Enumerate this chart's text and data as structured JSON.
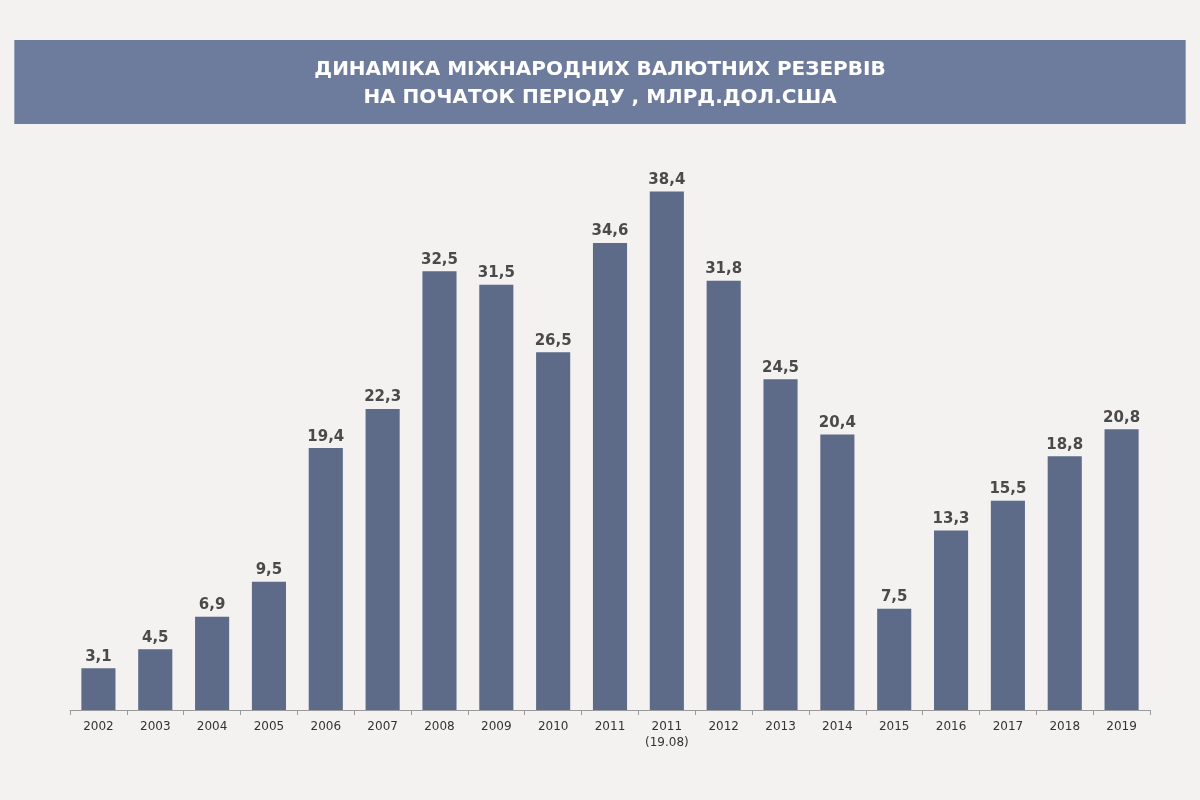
{
  "chart_data": {
    "type": "bar",
    "title": "ДИНАМІКА МІЖНАРОДНИХ ВАЛЮТНИХ РЕЗЕРВІВ\nНА ПОЧАТОК ПЕРІОДУ , МЛРД.ДОЛ.США",
    "categories": [
      "2002",
      "2003",
      "2004",
      "2005",
      "2006",
      "2007",
      "2008",
      "2009",
      "2010",
      "2011",
      "2011\n(19.08)",
      "2012",
      "2013",
      "2014",
      "2015",
      "2016",
      "2017",
      "2018",
      "2019"
    ],
    "values": [
      3.1,
      4.5,
      6.9,
      9.5,
      19.4,
      22.3,
      32.5,
      31.5,
      26.5,
      34.6,
      38.4,
      31.8,
      24.5,
      20.4,
      7.5,
      13.3,
      15.5,
      18.8,
      20.8
    ],
    "value_labels": [
      "3,1",
      "4,5",
      "6,9",
      "9,5",
      "19,4",
      "22,3",
      "32,5",
      "31,5",
      "26,5",
      "34,6",
      "38,4",
      "31,8",
      "24,5",
      "20,4",
      "7,5",
      "13,3",
      "15,5",
      "18,8",
      "20,8"
    ],
    "color": "#5d6a88",
    "grid": false
  }
}
